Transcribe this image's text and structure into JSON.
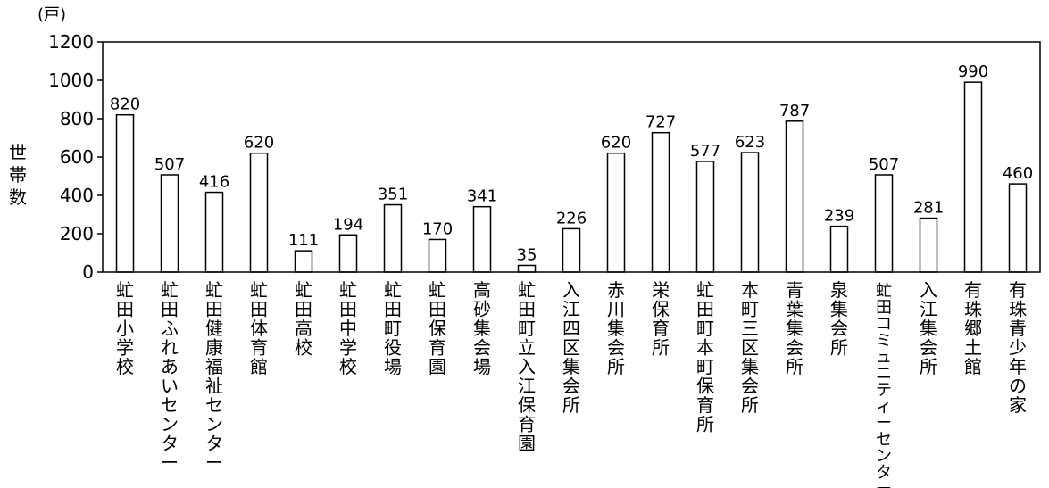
{
  "chart_data": {
    "type": "bar",
    "unit": "(戸)",
    "ylabel": "世帯数",
    "ylim": [
      0,
      1200
    ],
    "yticks": [
      0,
      200,
      400,
      600,
      800,
      1000,
      1200
    ],
    "grid": false,
    "categories": [
      "虻田小学校",
      "虻田ふれあいセンター",
      "虻田健康福祉センター",
      "虻田体育館",
      "虻田高校",
      "虻田中学校",
      "虻田町役場",
      "虻田保育園",
      "高砂集会場",
      "虻田町立入江保育園",
      "入江四区集会所",
      "赤川集会所",
      "栄保育所",
      "虻田町本町保育所",
      "本町三区集会所",
      "青葉集会所",
      "泉集会所",
      "虻田コミュニティーセンター",
      "入江集会所",
      "有珠郷土館",
      "有珠青少年の家"
    ],
    "values": [
      820,
      507,
      416,
      620,
      111,
      194,
      351,
      170,
      341,
      35,
      226,
      620,
      727,
      577,
      623,
      787,
      239,
      507,
      281,
      990,
      460
    ]
  }
}
